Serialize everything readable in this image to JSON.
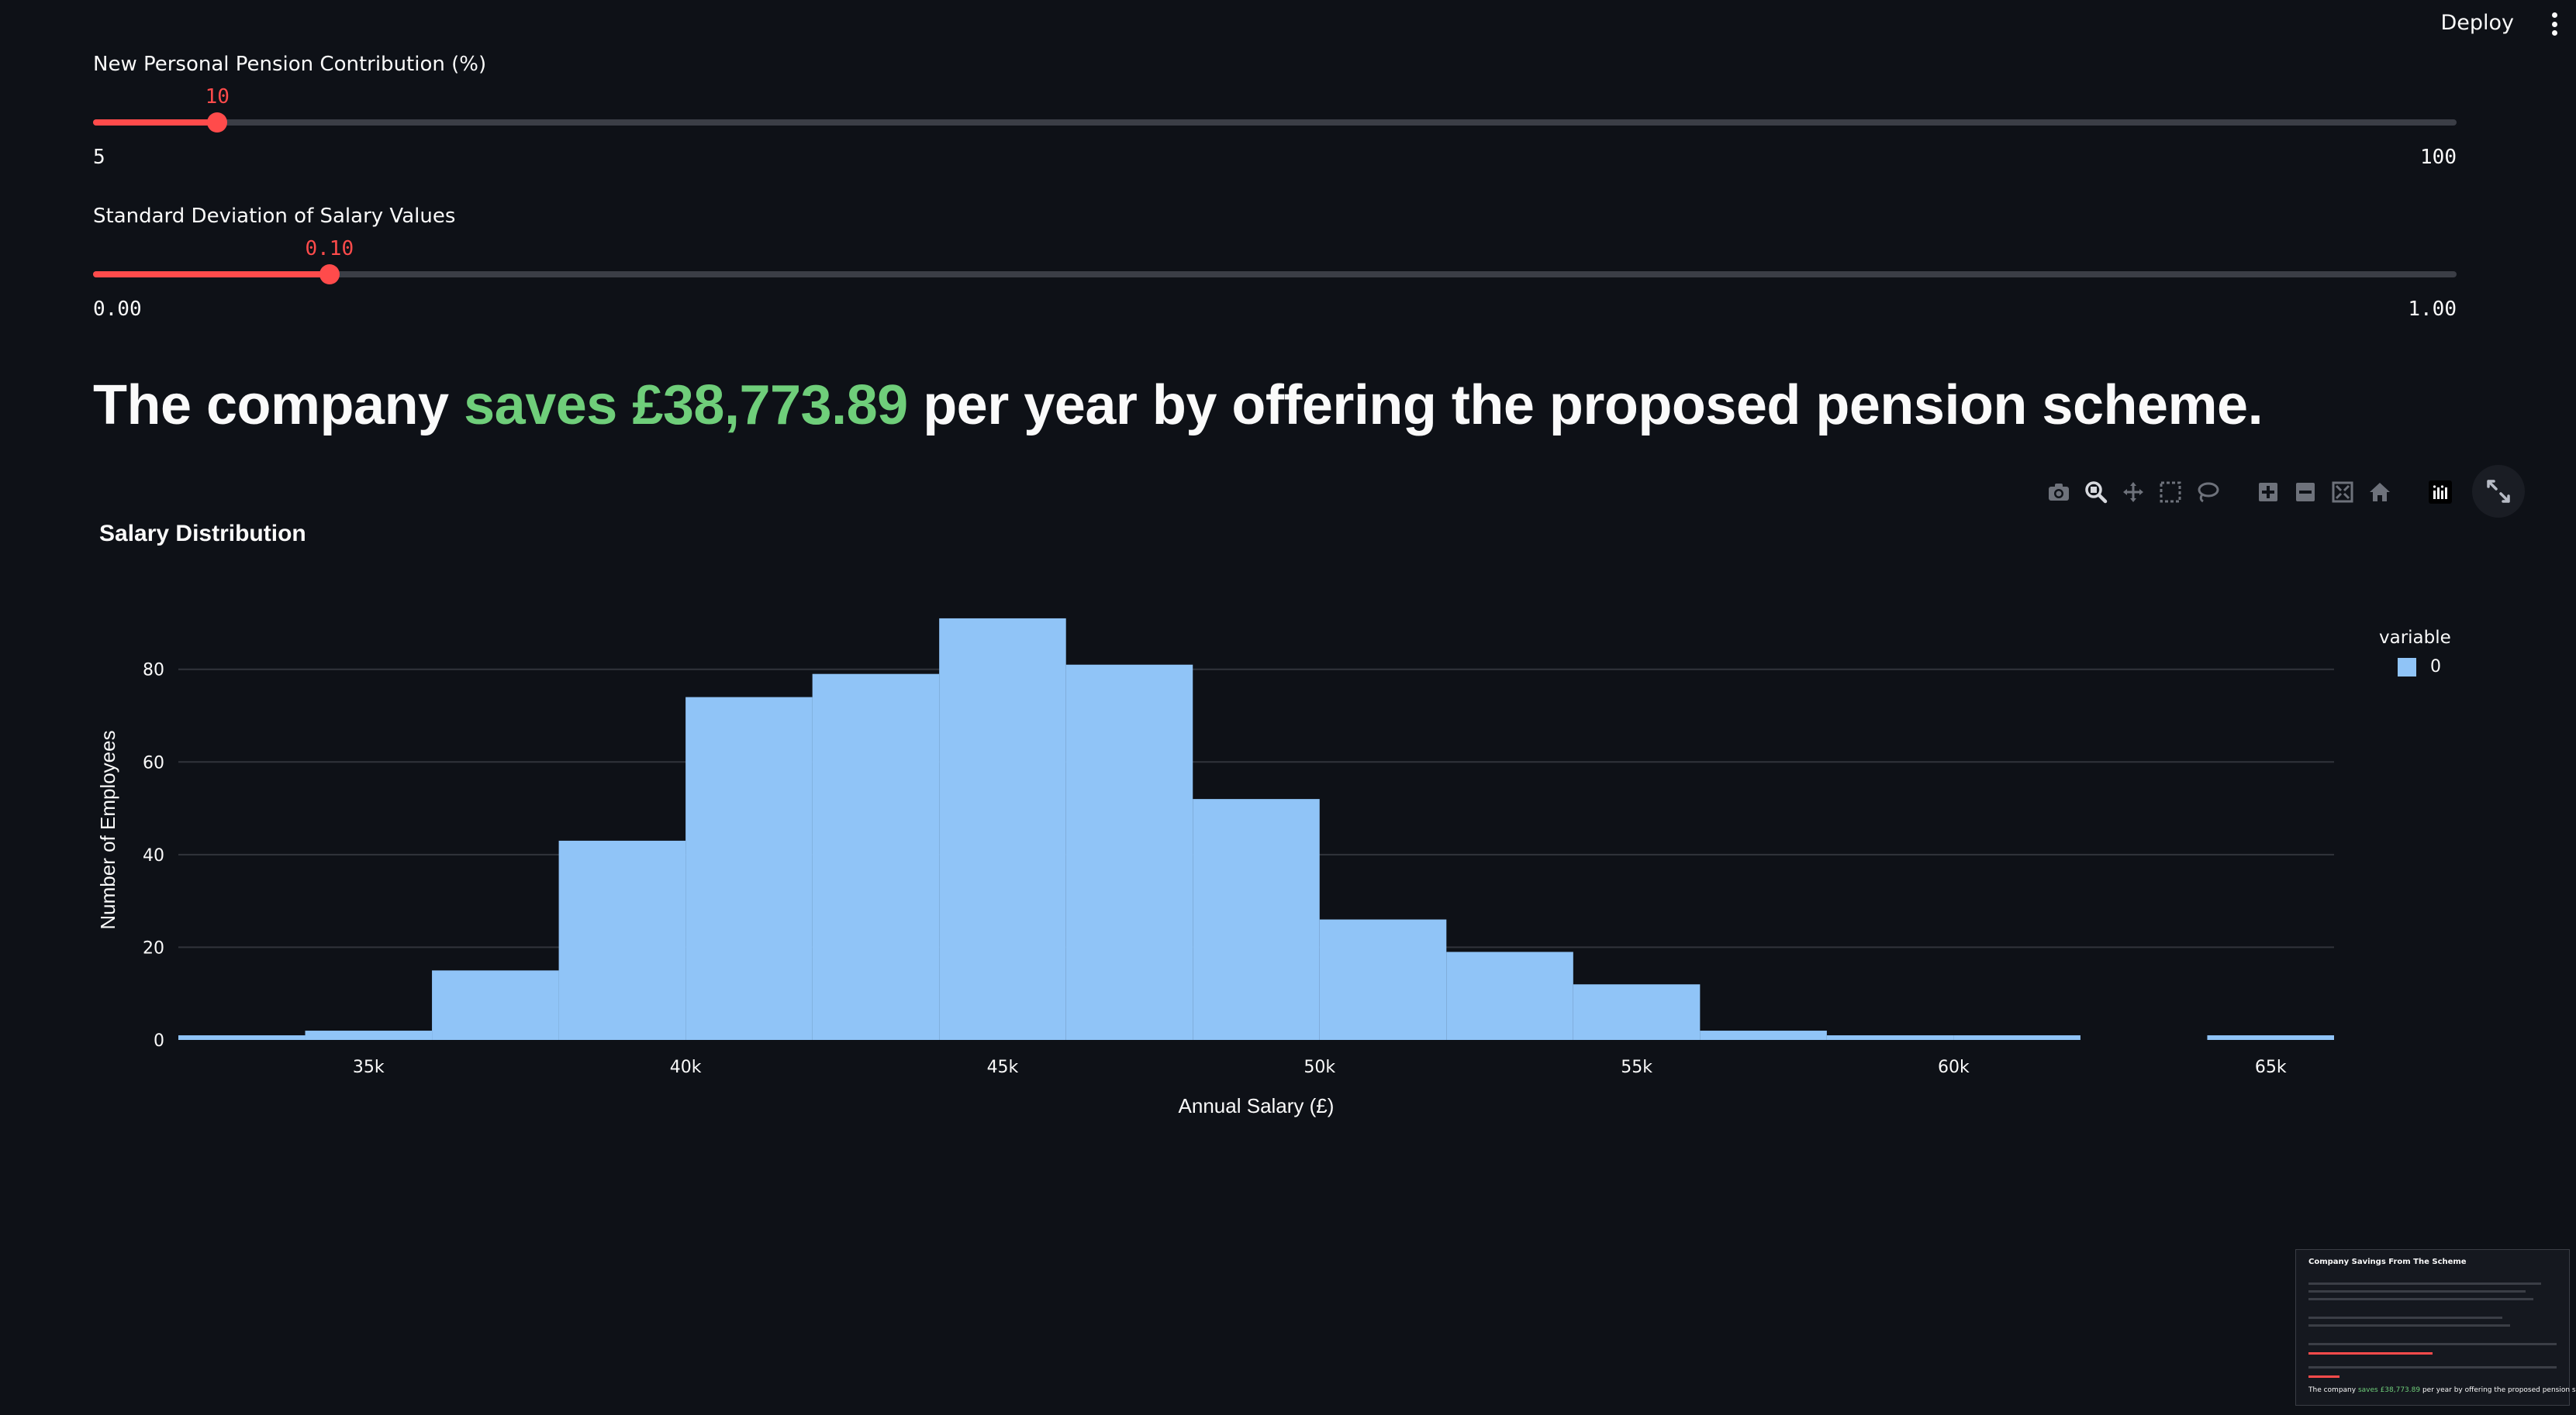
{
  "header": {
    "deploy_label": "Deploy"
  },
  "sliders": [
    {
      "label": "New Personal Pension Contribution (%)",
      "value": "10",
      "min": "5",
      "max": "100",
      "fraction": 0.0526
    },
    {
      "label": "Standard Deviation of Salary Values",
      "value": "0.10",
      "min": "0.00",
      "max": "1.00",
      "fraction": 0.1
    }
  ],
  "headline": {
    "prefix": "The company ",
    "highlight": "saves £38,773.89",
    "suffix": " per year by offering the proposed pension scheme."
  },
  "toolbar": {
    "icons": [
      "camera-icon",
      "zoom-icon",
      "pan-icon",
      "box-select-icon",
      "lasso-select-icon",
      "zoom-in-icon",
      "zoom-out-icon",
      "autoscale-icon",
      "reset-axes-icon",
      "plotly-logo-icon"
    ],
    "fullscreen_icon": "expand-icon"
  },
  "chart_data": {
    "type": "bar",
    "title": "Salary Distribution",
    "xlabel": "Annual Salary (£)",
    "ylabel": "Number of Employees",
    "bin_width": 2000,
    "bins": [
      {
        "start": 32000,
        "count": 1
      },
      {
        "start": 34000,
        "count": 2
      },
      {
        "start": 36000,
        "count": 15
      },
      {
        "start": 38000,
        "count": 43
      },
      {
        "start": 40000,
        "count": 74
      },
      {
        "start": 42000,
        "count": 79
      },
      {
        "start": 44000,
        "count": 91
      },
      {
        "start": 46000,
        "count": 81
      },
      {
        "start": 48000,
        "count": 52
      },
      {
        "start": 50000,
        "count": 26
      },
      {
        "start": 52000,
        "count": 19
      },
      {
        "start": 54000,
        "count": 12
      },
      {
        "start": 56000,
        "count": 2
      },
      {
        "start": 58000,
        "count": 1
      },
      {
        "start": 60000,
        "count": 1
      },
      {
        "start": 62000,
        "count": 0
      },
      {
        "start": 64000,
        "count": 1
      }
    ],
    "xlim": [
      32000,
      66000
    ],
    "ylim": [
      0,
      94
    ],
    "xticks": [
      35000,
      40000,
      45000,
      50000,
      55000,
      60000,
      65000
    ],
    "xtick_labels": [
      "35k",
      "40k",
      "45k",
      "50k",
      "55k",
      "60k",
      "65k"
    ],
    "yticks": [
      0,
      20,
      40,
      60,
      80
    ],
    "ytick_labels": [
      "0",
      "20",
      "40",
      "60",
      "80"
    ],
    "legend": {
      "title": "variable",
      "entries": [
        "0"
      ],
      "placement": "right"
    },
    "grid": true,
    "bar_color": "#90c4f7"
  },
  "minimap": {
    "title": "Company Savings From The Scheme",
    "prefix": "The company ",
    "highlight": "saves £38,773.89",
    "suffix": " per year by offering the proposed pension scheme."
  },
  "colors": {
    "background": "#0e1117",
    "accent": "#ff4b4b",
    "savings": "#6fce7a",
    "bar": "#90c4f7"
  }
}
